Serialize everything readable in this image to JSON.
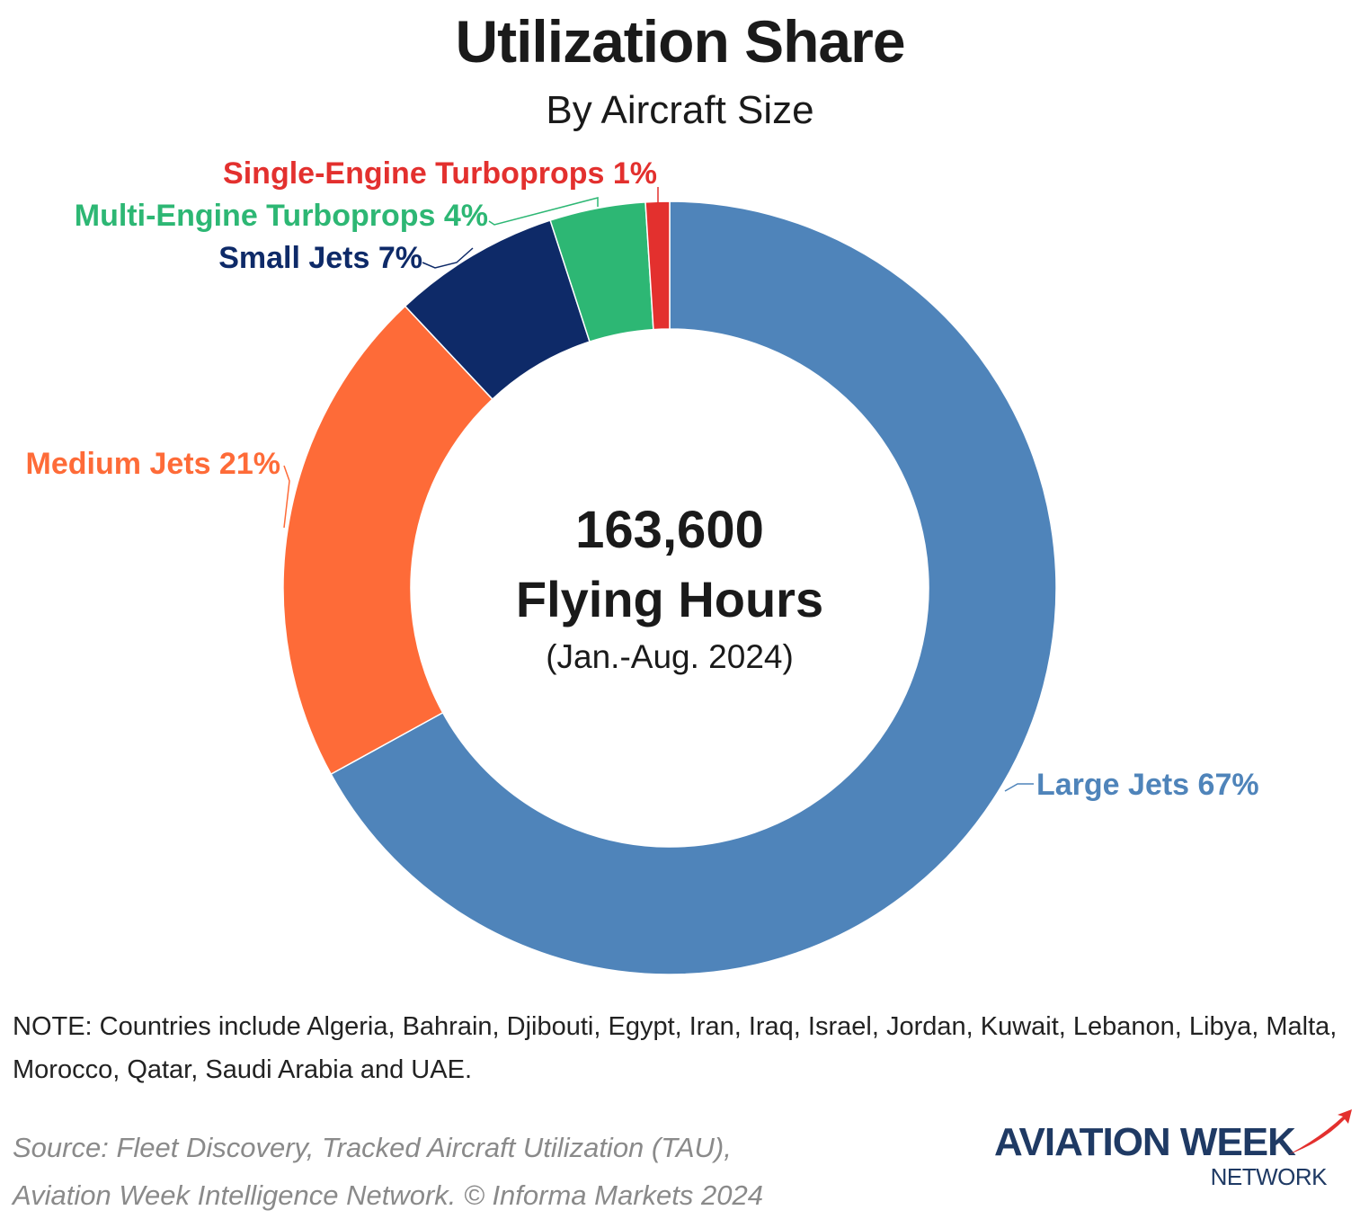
{
  "title": "Utilization Share",
  "subtitle": "By Aircraft Size",
  "chart_data": {
    "type": "pie",
    "variant": "donut",
    "title": "Utilization Share",
    "subtitle": "By Aircraft Size",
    "center": {
      "value": "163,600",
      "label": "Flying Hours",
      "period": "(Jan.-Aug. 2024)"
    },
    "slices": [
      {
        "name": "Large Jets",
        "value": 67,
        "label": "Large Jets 67%",
        "color": "#4f84ba"
      },
      {
        "name": "Medium Jets",
        "value": 21,
        "label": "Medium Jets 21%",
        "color": "#fe6b38"
      },
      {
        "name": "Small Jets",
        "value": 7,
        "label": "Small Jets 7%",
        "color": "#0e2a68"
      },
      {
        "name": "Multi-Engine Turboprops",
        "value": 4,
        "label": "Multi-Engine Turboprops 4%",
        "color": "#2db774"
      },
      {
        "name": "Single-Engine Turboprops",
        "value": 1,
        "label": "Single-Engine Turboprops 1%",
        "color": "#e3302e"
      }
    ]
  },
  "note": "NOTE: Countries include Algeria, Bahrain, Djibouti, Egypt, Iran, Iraq, Israel, Jordan, Kuwait, Lebanon, Libya, Malta, Morocco, Qatar, Saudi Arabia and UAE.",
  "source_line1": "Source: Fleet Discovery, Tracked Aircraft Utilization (TAU),",
  "source_line2": "Aviation Week Intelligence Network. © Informa Markets 2024",
  "logo": {
    "main": "AVIATION WEEK",
    "sub": "NETWORK",
    "color": "#1f3a64",
    "accent": "#e3302e"
  }
}
